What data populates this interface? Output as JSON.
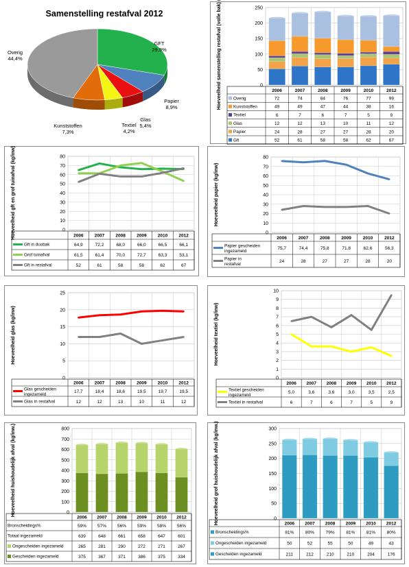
{
  "colors": {
    "gft": "#22B14C",
    "papier": "#4F81BD",
    "glas": "#E81010",
    "textiel": "#F5F515",
    "kunststoffen": "#E36C0A",
    "overig": "#9A9A9A",
    "stack_gft": "#2E75C8",
    "stack_papier": "#F2A34A",
    "stack_glas": "#A9C472",
    "stack_textiel": "#5B3E96",
    "stack_kunststoffen": "#F79A2E",
    "stack_overig": "#A9C0E0",
    "line_grey": "#808080",
    "line_green": "#22B14C",
    "line_lightgreen": "#92D050",
    "line_blue": "#4F81BD",
    "line_red": "#FF0000",
    "line_yellow": "#FFFF00",
    "bar_green_dark": "#6D8F22",
    "bar_green_light": "#B7D36B",
    "bar_blue_dark": "#2E9CC0",
    "bar_blue_light": "#7FCBE2"
  },
  "chart_data": [
    {
      "id": "pie",
      "type": "pie",
      "title": "Samenstelling restafval 2012",
      "slices": [
        {
          "name": "GFT",
          "value": 29.9,
          "label": "29,9%",
          "color": "#22B14C"
        },
        {
          "name": "Papier",
          "value": 8.9,
          "label": "8,9%",
          "color": "#4F81BD"
        },
        {
          "name": "Glas",
          "value": 5.4,
          "label": "5,4%",
          "color": "#E81010"
        },
        {
          "name": "Textiel",
          "value": 4.2,
          "label": "4,2%",
          "color": "#F5F515"
        },
        {
          "name": "Kunststoffen",
          "value": 7.3,
          "label": "7,3%",
          "color": "#E36C0A"
        },
        {
          "name": "Overig",
          "value": 44.4,
          "label": "44,4%",
          "color": "#9A9A9A"
        }
      ]
    },
    {
      "id": "stacked",
      "type": "bar",
      "ylabel": "Hoeveelheid samenstelling restafval (volle bak) (kg/inw)",
      "ylim": [
        0,
        250
      ],
      "yticks": [
        "0",
        "50",
        "100",
        "150",
        "200",
        "250"
      ],
      "categories": [
        "2006",
        "2007",
        "2008",
        "2009",
        "2010",
        "2012"
      ],
      "series": [
        {
          "name": "Gft",
          "values": [
            52,
            61,
            58,
            58,
            62,
            67
          ],
          "color": "#2E75C8"
        },
        {
          "name": "Papier",
          "values": [
            24,
            28,
            27,
            27,
            28,
            20
          ],
          "color": "#F2A34A"
        },
        {
          "name": "Glas",
          "values": [
            12,
            12,
            13,
            10,
            11,
            12
          ],
          "color": "#A9C472"
        },
        {
          "name": "Textiel",
          "values": [
            6,
            7,
            6,
            7,
            5,
            9
          ],
          "color": "#5B3E96"
        },
        {
          "name": "Kunststoffen",
          "values": [
            49,
            49,
            47,
            44,
            38,
            16
          ],
          "color": "#F79A2E"
        },
        {
          "name": "Overig",
          "values": [
            72,
            74,
            84,
            76,
            77,
            99
          ],
          "color": "#A9C0E0"
        }
      ],
      "table_rows": [
        {
          "name": "Overig",
          "color": "#A9C0E0",
          "cells": [
            "72",
            "74",
            "84",
            "76",
            "77",
            "99"
          ]
        },
        {
          "name": "Kunststoffen",
          "color": "#F79A2E",
          "cells": [
            "49",
            "49",
            "47",
            "44",
            "38",
            "16"
          ]
        },
        {
          "name": "Textiel",
          "color": "#5B3E96",
          "cells": [
            "6",
            "7",
            "6",
            "7",
            "5",
            "9"
          ]
        },
        {
          "name": "Glas",
          "color": "#A9C472",
          "cells": [
            "12",
            "12",
            "13",
            "10",
            "11",
            "12"
          ]
        },
        {
          "name": "Papier",
          "color": "#F2A34A",
          "cells": [
            "24",
            "28",
            "27",
            "27",
            "28",
            "20"
          ]
        },
        {
          "name": "Gft",
          "color": "#2E75C8",
          "cells": [
            "52",
            "61",
            "58",
            "58",
            "62",
            "67"
          ]
        }
      ]
    },
    {
      "id": "gft",
      "type": "line",
      "ylabel": "Hoeveelheid gft en grof tuinafval (kg/inw)",
      "ylim": [
        0,
        80
      ],
      "yticks": [
        "0",
        "10",
        "20",
        "30",
        "40",
        "50",
        "60",
        "70",
        "80"
      ],
      "categories": [
        "2006",
        "2007",
        "2008",
        "2009",
        "2010",
        "2012"
      ],
      "series": [
        {
          "name": "Gft in duobak",
          "values": [
            64.9,
            72.2,
            68.0,
            66.0,
            66.5,
            66.1
          ],
          "color": "#22B14C"
        },
        {
          "name": "Grof tuinafval",
          "values": [
            61.5,
            61.4,
            70.0,
            72.7,
            63.3,
            53.1
          ],
          "color": "#92D050"
        },
        {
          "name": "Gft in restafval",
          "values": [
            52,
            61,
            58,
            58,
            62,
            67
          ],
          "color": "#808080"
        }
      ],
      "table_rows": [
        {
          "name": "Gft in duobak",
          "color": "#22B14C",
          "cells": [
            "64,9",
            "72,2",
            "68,0",
            "66,0",
            "66,5",
            "66,1"
          ]
        },
        {
          "name": "Grof tuinafval",
          "color": "#92D050",
          "cells": [
            "61,5",
            "61,4",
            "70,0",
            "72,7",
            "63,3",
            "53,1"
          ]
        },
        {
          "name": "Gft in restafval",
          "color": "#808080",
          "cells": [
            "52",
            "61",
            "58",
            "58",
            "62",
            "67"
          ]
        }
      ]
    },
    {
      "id": "papier",
      "type": "line",
      "ylabel": "Hoeveelheid papier (kg/inw)",
      "ylim": [
        0,
        80
      ],
      "yticks": [
        "0",
        "10",
        "20",
        "30",
        "40",
        "50",
        "60",
        "70",
        "80"
      ],
      "categories": [
        "2006",
        "2007",
        "2008",
        "2009",
        "2010",
        "2012"
      ],
      "series": [
        {
          "name": "Papier gescheiden ingezameld",
          "values": [
            75.7,
            74.4,
            75.8,
            71.8,
            62.6,
            56.3
          ],
          "color": "#4F81BD"
        },
        {
          "name": "Papier in restafval",
          "values": [
            24,
            28,
            27,
            27,
            28,
            20
          ],
          "color": "#808080"
        }
      ],
      "table_rows": [
        {
          "name": "Papier gescheiden ingezameld",
          "color": "#4F81BD",
          "cells": [
            "75,7",
            "74,4",
            "75,8",
            "71,8",
            "62,6",
            "56,3"
          ]
        },
        {
          "name": "Papier in restafval",
          "color": "#808080",
          "cells": [
            "24",
            "28",
            "27",
            "27",
            "28",
            "20"
          ]
        }
      ]
    },
    {
      "id": "glas",
      "type": "line",
      "ylabel": "Hoeveelheid glas (kg/inw)",
      "ylim": [
        0,
        25
      ],
      "yticks": [
        "0",
        "5",
        "10",
        "15",
        "20",
        "25"
      ],
      "categories": [
        "2006",
        "2007",
        "2008",
        "2009",
        "2010",
        "2012"
      ],
      "series": [
        {
          "name": "Glas gescheiden ingezameld",
          "values": [
            17.7,
            18.4,
            18.6,
            19.5,
            19.7,
            19.5
          ],
          "color": "#FF0000"
        },
        {
          "name": "Glas in restafval",
          "values": [
            12,
            12,
            13,
            10,
            11,
            12
          ],
          "color": "#808080"
        }
      ],
      "table_rows": [
        {
          "name": "Glas gescheiden ingezameld",
          "color": "#FF0000",
          "cells": [
            "17,7",
            "18,4",
            "18,6",
            "19,5",
            "19,7",
            "19,5"
          ]
        },
        {
          "name": "Glas in restafval",
          "color": "#808080",
          "cells": [
            "12",
            "12",
            "13",
            "10",
            "11",
            "12"
          ]
        }
      ]
    },
    {
      "id": "textiel",
      "type": "line",
      "ylabel": "Hoeveelheid textiel (kg/inw)",
      "ylim": [
        0,
        10
      ],
      "yticks": [
        "0",
        "1",
        "2",
        "3",
        "4",
        "5",
        "6",
        "7",
        "8",
        "9",
        "10"
      ],
      "categories": [
        "2006",
        "2007",
        "2008",
        "2009",
        "2010",
        "2012"
      ],
      "series": [
        {
          "name": "Textiel gescheiden ingezameld",
          "values": [
            5.0,
            3.6,
            3.6,
            3.0,
            3.5,
            2.5
          ],
          "color": "#FFFF00"
        },
        {
          "name": "Textiel in restafval",
          "values": [
            6.5,
            7.0,
            5.8,
            7.2,
            5.5,
            9.5
          ],
          "color": "#808080"
        }
      ],
      "table_rows": [
        {
          "name": "Textiel gescheiden ingezameld",
          "color": "#FFFF00",
          "cells": [
            "5,0",
            "3,6",
            "3,6",
            "3,0",
            "3,5",
            "2,5"
          ]
        },
        {
          "name": "Textiel in restafval",
          "color": "#808080",
          "cells": [
            "6",
            "7",
            "6",
            "7",
            "5",
            "9"
          ]
        }
      ]
    },
    {
      "id": "huishoudelijk",
      "type": "bar",
      "ylabel": "Hoeveelheid huishoudelijk afval (kg/inw.)",
      "ylim": [
        0,
        800
      ],
      "yticks": [
        "0",
        "100",
        "200",
        "300",
        "400",
        "500",
        "600",
        "700",
        "800"
      ],
      "categories": [
        "2006",
        "2007",
        "2008",
        "2009",
        "2010",
        "2012"
      ],
      "series": [
        {
          "name": "Gescheiden ingezameld",
          "values": [
            375,
            367,
            371,
            386,
            375,
            334
          ],
          "color": "#6D8F22"
        },
        {
          "name": "Ongescheiden ingezameld",
          "values": [
            265,
            281,
            290,
            272,
            271,
            267
          ],
          "color": "#B7D36B"
        }
      ],
      "table_rows": [
        {
          "name": "Bronscheidings%",
          "color": "",
          "cells": [
            "59%",
            "57%",
            "56%",
            "59%",
            "58%",
            "56%"
          ]
        },
        {
          "name": "Totaal ingezameld",
          "color": "",
          "cells": [
            "639",
            "648",
            "661",
            "658",
            "647",
            "601"
          ]
        },
        {
          "name": "Ongescheiden ingezameld",
          "color": "#B7D36B",
          "cells": [
            "265",
            "281",
            "290",
            "272",
            "271",
            "267"
          ]
        },
        {
          "name": "Gescheiden ingezameld",
          "color": "#6D8F22",
          "cells": [
            "375",
            "367",
            "371",
            "386",
            "375",
            "334"
          ]
        }
      ]
    },
    {
      "id": "grof",
      "type": "bar",
      "ylabel": "Hoeveelheid grof huishoudelijk afval (kg/inw.)",
      "ylim": [
        0,
        300
      ],
      "yticks": [
        "0",
        "50",
        "100",
        "150",
        "200",
        "250",
        "300"
      ],
      "categories": [
        "2006",
        "2007",
        "2008",
        "2009",
        "2010",
        "2012"
      ],
      "series": [
        {
          "name": "Gescheiden ingezameld",
          "values": [
            211,
            212,
            210,
            210,
            204,
            176
          ],
          "color": "#2E9CC0"
        },
        {
          "name": "Ongescheiden ingezameld",
          "values": [
            50,
            52,
            55,
            50,
            49,
            43
          ],
          "color": "#7FCBE2"
        }
      ],
      "table_rows": [
        {
          "name": "Bronscheidings%",
          "color": "#2E9CC0",
          "cells": [
            "81%",
            "80%",
            "79%",
            "81%",
            "81%",
            "80%"
          ]
        },
        {
          "name": "Ongescheiden ingezameld",
          "color": "#7FCBE2",
          "cells": [
            "50",
            "52",
            "55",
            "50",
            "49",
            "43"
          ]
        },
        {
          "name": "Gescheiden ingezameld",
          "color": "#2E9CC0",
          "cells": [
            "211",
            "212",
            "210",
            "210",
            "204",
            "176"
          ]
        }
      ]
    }
  ]
}
